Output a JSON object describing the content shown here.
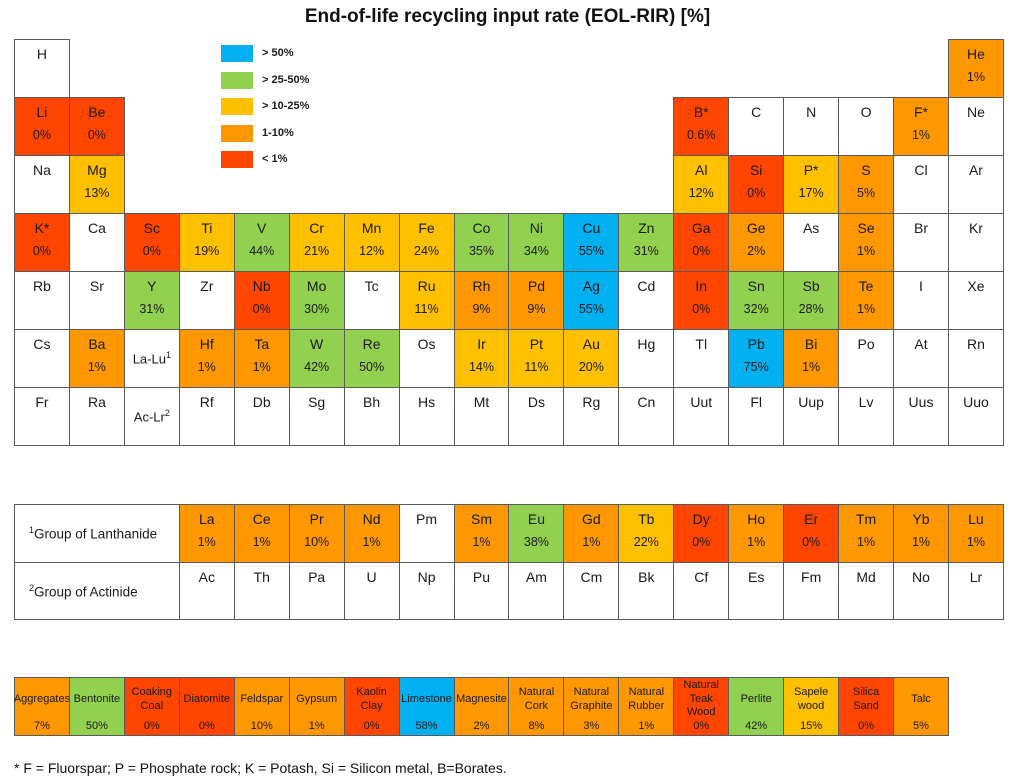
{
  "chart_data": {
    "type": "table",
    "title": "End-of-life recycling input rate (EOL-RIR) [%]",
    "legend": [
      {
        "label": "> 50%",
        "color": "#00b0f0"
      },
      {
        "label": "> 25-50%",
        "color": "#92d050"
      },
      {
        "label": "> 10-25%",
        "color": "#ffc000"
      },
      {
        "label": "1-10%",
        "color": "#ff9800"
      },
      {
        "label": "< 1%",
        "color": "#ff4500"
      }
    ],
    "colors": {
      "c1": "#00b0f0",
      "c2": "#92d050",
      "c3": "#ffc000",
      "c4": "#ff9800",
      "c5": "#ff4500",
      "none": "#ffffff"
    },
    "elements": [
      {
        "s": "H",
        "r": 1,
        "c": 1
      },
      {
        "s": "He",
        "v": "1%",
        "cls": "c4",
        "r": 1,
        "c": 18
      },
      {
        "s": "Li",
        "v": "0%",
        "cls": "c5",
        "r": 2,
        "c": 1
      },
      {
        "s": "Be",
        "v": "0%",
        "cls": "c5",
        "r": 2,
        "c": 2
      },
      {
        "s": "B*",
        "v": "0.6%",
        "cls": "c5",
        "r": 2,
        "c": 13
      },
      {
        "s": "C",
        "r": 2,
        "c": 14
      },
      {
        "s": "N",
        "r": 2,
        "c": 15
      },
      {
        "s": "O",
        "r": 2,
        "c": 16
      },
      {
        "s": "F*",
        "v": "1%",
        "cls": "c4",
        "r": 2,
        "c": 17
      },
      {
        "s": "Ne",
        "r": 2,
        "c": 18
      },
      {
        "s": "Na",
        "r": 3,
        "c": 1
      },
      {
        "s": "Mg",
        "v": "13%",
        "cls": "c3",
        "r": 3,
        "c": 2
      },
      {
        "s": "Al",
        "v": "12%",
        "cls": "c3",
        "r": 3,
        "c": 13
      },
      {
        "s": "Si",
        "v": "0%",
        "cls": "c5",
        "r": 3,
        "c": 14
      },
      {
        "s": "P*",
        "v": "17%",
        "cls": "c3",
        "r": 3,
        "c": 15
      },
      {
        "s": "S",
        "v": "5%",
        "cls": "c4",
        "r": 3,
        "c": 16
      },
      {
        "s": "Cl",
        "r": 3,
        "c": 17
      },
      {
        "s": "Ar",
        "r": 3,
        "c": 18
      },
      {
        "s": "K*",
        "v": "0%",
        "cls": "c5",
        "r": 4,
        "c": 1
      },
      {
        "s": "Ca",
        "r": 4,
        "c": 2
      },
      {
        "s": "Sc",
        "v": "0%",
        "cls": "c5",
        "r": 4,
        "c": 3
      },
      {
        "s": "Ti",
        "v": "19%",
        "cls": "c3",
        "r": 4,
        "c": 4
      },
      {
        "s": "V",
        "v": "44%",
        "cls": "c2",
        "r": 4,
        "c": 5
      },
      {
        "s": "Cr",
        "v": "21%",
        "cls": "c3",
        "r": 4,
        "c": 6
      },
      {
        "s": "Mn",
        "v": "12%",
        "cls": "c3",
        "r": 4,
        "c": 7
      },
      {
        "s": "Fe",
        "v": "24%",
        "cls": "c3",
        "r": 4,
        "c": 8
      },
      {
        "s": "Co",
        "v": "35%",
        "cls": "c2",
        "r": 4,
        "c": 9
      },
      {
        "s": "Ni",
        "v": "34%",
        "cls": "c2",
        "r": 4,
        "c": 10
      },
      {
        "s": "Cu",
        "v": "55%",
        "cls": "c1",
        "r": 4,
        "c": 11
      },
      {
        "s": "Zn",
        "v": "31%",
        "cls": "c2",
        "r": 4,
        "c": 12
      },
      {
        "s": "Ga",
        "v": "0%",
        "cls": "c5",
        "r": 4,
        "c": 13
      },
      {
        "s": "Ge",
        "v": "2%",
        "cls": "c4",
        "r": 4,
        "c": 14
      },
      {
        "s": "As",
        "r": 4,
        "c": 15
      },
      {
        "s": "Se",
        "v": "1%",
        "cls": "c4",
        "r": 4,
        "c": 16
      },
      {
        "s": "Br",
        "r": 4,
        "c": 17
      },
      {
        "s": "Kr",
        "r": 4,
        "c": 18
      },
      {
        "s": "Rb",
        "r": 5,
        "c": 1
      },
      {
        "s": "Sr",
        "r": 5,
        "c": 2
      },
      {
        "s": "Y",
        "v": "31%",
        "cls": "c2",
        "r": 5,
        "c": 3
      },
      {
        "s": "Zr",
        "r": 5,
        "c": 4
      },
      {
        "s": "Nb",
        "v": "0%",
        "cls": "c5",
        "r": 5,
        "c": 5
      },
      {
        "s": "Mo",
        "v": "30%",
        "cls": "c2",
        "r": 5,
        "c": 6
      },
      {
        "s": "Tc",
        "r": 5,
        "c": 7
      },
      {
        "s": "Ru",
        "v": "11%",
        "cls": "c3",
        "r": 5,
        "c": 8
      },
      {
        "s": "Rh",
        "v": "9%",
        "cls": "c4",
        "r": 5,
        "c": 9
      },
      {
        "s": "Pd",
        "v": "9%",
        "cls": "c4",
        "r": 5,
        "c": 10
      },
      {
        "s": "Ag",
        "v": "55%",
        "cls": "c1",
        "r": 5,
        "c": 11
      },
      {
        "s": "Cd",
        "r": 5,
        "c": 12
      },
      {
        "s": "In",
        "v": "0%",
        "cls": "c5",
        "r": 5,
        "c": 13
      },
      {
        "s": "Sn",
        "v": "32%",
        "cls": "c2",
        "r": 5,
        "c": 14
      },
      {
        "s": "Sb",
        "v": "28%",
        "cls": "c2",
        "r": 5,
        "c": 15
      },
      {
        "s": "Te",
        "v": "1%",
        "cls": "c4",
        "r": 5,
        "c": 16
      },
      {
        "s": "I",
        "r": 5,
        "c": 17
      },
      {
        "s": "Xe",
        "r": 5,
        "c": 18
      },
      {
        "s": "Cs",
        "r": 6,
        "c": 1
      },
      {
        "s": "Ba",
        "v": "1%",
        "cls": "c4",
        "r": 6,
        "c": 2
      },
      {
        "s": "Hf",
        "v": "1%",
        "cls": "c4",
        "r": 6,
        "c": 4
      },
      {
        "s": "Ta",
        "v": "1%",
        "cls": "c4",
        "r": 6,
        "c": 5
      },
      {
        "s": "W",
        "v": "42%",
        "cls": "c2",
        "r": 6,
        "c": 6
      },
      {
        "s": "Re",
        "v": "50%",
        "cls": "c2",
        "r": 6,
        "c": 7
      },
      {
        "s": "Os",
        "r": 6,
        "c": 8
      },
      {
        "s": "Ir",
        "v": "14%",
        "cls": "c3",
        "r": 6,
        "c": 9
      },
      {
        "s": "Pt",
        "v": "11%",
        "cls": "c3",
        "r": 6,
        "c": 10
      },
      {
        "s": "Au",
        "v": "20%",
        "cls": "c3",
        "r": 6,
        "c": 11
      },
      {
        "s": "Hg",
        "r": 6,
        "c": 12
      },
      {
        "s": "Tl",
        "r": 6,
        "c": 13
      },
      {
        "s": "Pb",
        "v": "75%",
        "cls": "c1",
        "r": 6,
        "c": 14
      },
      {
        "s": "Bi",
        "v": "1%",
        "cls": "c4",
        "r": 6,
        "c": 15
      },
      {
        "s": "Po",
        "r": 6,
        "c": 16
      },
      {
        "s": "At",
        "r": 6,
        "c": 17
      },
      {
        "s": "Rn",
        "r": 6,
        "c": 18
      },
      {
        "s": "Fr",
        "r": 7,
        "c": 1
      },
      {
        "s": "Ra",
        "r": 7,
        "c": 2
      },
      {
        "s": "Rf",
        "r": 7,
        "c": 4
      },
      {
        "s": "Db",
        "r": 7,
        "c": 5
      },
      {
        "s": "Sg",
        "r": 7,
        "c": 6
      },
      {
        "s": "Bh",
        "r": 7,
        "c": 7
      },
      {
        "s": "Hs",
        "r": 7,
        "c": 8
      },
      {
        "s": "Mt",
        "r": 7,
        "c": 9
      },
      {
        "s": "Ds",
        "r": 7,
        "c": 10
      },
      {
        "s": "Rg",
        "r": 7,
        "c": 11
      },
      {
        "s": "Cn",
        "r": 7,
        "c": 12
      },
      {
        "s": "Uut",
        "r": 7,
        "c": 13
      },
      {
        "s": "Fl",
        "r": 7,
        "c": 14
      },
      {
        "s": "Uup",
        "r": 7,
        "c": 15
      },
      {
        "s": "Lv",
        "r": 7,
        "c": 16
      },
      {
        "s": "Uus",
        "r": 7,
        "c": 17
      },
      {
        "s": "Uuo",
        "r": 7,
        "c": 18
      }
    ],
    "lanthanide_placeholder": {
      "label": "La-Lu",
      "sup": "1"
    },
    "actinide_placeholder": {
      "label": "Ac-Lr",
      "sup": "2"
    },
    "lanthanide_group": {
      "sup": "1",
      "label": "Group of Lanthanide"
    },
    "actinide_group": {
      "sup": "2",
      "label": "Group of Actinide"
    },
    "lanthanides": [
      {
        "s": "La",
        "v": "1%",
        "cls": "c4"
      },
      {
        "s": "Ce",
        "v": "1%",
        "cls": "c4"
      },
      {
        "s": "Pr",
        "v": "10%",
        "cls": "c4"
      },
      {
        "s": "Nd",
        "v": "1%",
        "cls": "c4"
      },
      {
        "s": "Pm"
      },
      {
        "s": "Sm",
        "v": "1%",
        "cls": "c4"
      },
      {
        "s": "Eu",
        "v": "38%",
        "cls": "c2"
      },
      {
        "s": "Gd",
        "v": "1%",
        "cls": "c4"
      },
      {
        "s": "Tb",
        "v": "22%",
        "cls": "c3"
      },
      {
        "s": "Dy",
        "v": "0%",
        "cls": "c5"
      },
      {
        "s": "Ho",
        "v": "1%",
        "cls": "c4"
      },
      {
        "s": "Er",
        "v": "0%",
        "cls": "c5"
      },
      {
        "s": "Tm",
        "v": "1%",
        "cls": "c4"
      },
      {
        "s": "Yb",
        "v": "1%",
        "cls": "c4"
      },
      {
        "s": "Lu",
        "v": "1%",
        "cls": "c4"
      }
    ],
    "actinides": [
      {
        "s": "Ac"
      },
      {
        "s": "Th"
      },
      {
        "s": "Pa"
      },
      {
        "s": "U"
      },
      {
        "s": "Np"
      },
      {
        "s": "Pu"
      },
      {
        "s": "Am"
      },
      {
        "s": "Cm"
      },
      {
        "s": "Bk"
      },
      {
        "s": "Cf"
      },
      {
        "s": "Es"
      },
      {
        "s": "Fm"
      },
      {
        "s": "Md"
      },
      {
        "s": "No"
      },
      {
        "s": "Lr"
      }
    ],
    "materials": [
      {
        "name": "Aggregates",
        "v": "7%",
        "cls": "c4"
      },
      {
        "name": "Bentonite",
        "v": "50%",
        "cls": "c2"
      },
      {
        "name": "Coaking Coal",
        "v": "0%",
        "cls": "c5"
      },
      {
        "name": "Diatomite",
        "v": "0%",
        "cls": "c5"
      },
      {
        "name": "Feldspar",
        "v": "10%",
        "cls": "c4"
      },
      {
        "name": "Gypsum",
        "v": "1%",
        "cls": "c4"
      },
      {
        "name": "Kaolin Clay",
        "v": "0%",
        "cls": "c5"
      },
      {
        "name": "Limestone",
        "v": "58%",
        "cls": "c1"
      },
      {
        "name": "Magnesite",
        "v": "2%",
        "cls": "c4"
      },
      {
        "name": "Natural Cork",
        "v": "8%",
        "cls": "c4"
      },
      {
        "name": "Natural Graphite",
        "v": "3%",
        "cls": "c4"
      },
      {
        "name": "Natural Rubber",
        "v": "1%",
        "cls": "c4"
      },
      {
        "name": "Natural Teak Wood",
        "v": "0%",
        "cls": "c5"
      },
      {
        "name": "Perlite",
        "v": "42%",
        "cls": "c2"
      },
      {
        "name": "Sapele wood",
        "v": "15%",
        "cls": "c3"
      },
      {
        "name": "Silica Sand",
        "v": "0%",
        "cls": "c5"
      },
      {
        "name": "Talc",
        "v": "5%",
        "cls": "c4"
      }
    ],
    "footnote": "* F = Fluorspar;  P = Phosphate  rock; K = Potash,  Si = Silicon metal,   B=Borates."
  }
}
